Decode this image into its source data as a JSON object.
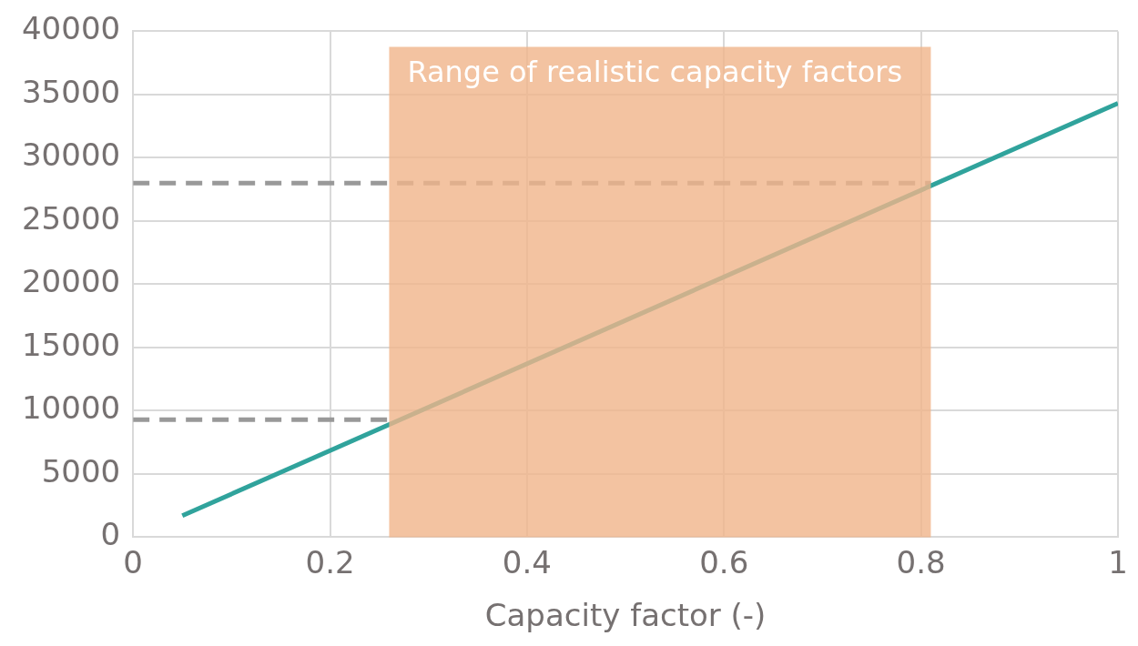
{
  "chart_data": {
    "type": "line",
    "xlabel": "Capacity factor (-)",
    "xlim": [
      0,
      1
    ],
    "xticks": [
      0,
      0.2,
      0.4,
      0.6,
      0.8,
      1
    ],
    "ylim": [
      0,
      40000
    ],
    "yticks": [
      0,
      5000,
      10000,
      15000,
      20000,
      25000,
      30000,
      35000,
      40000
    ],
    "grid": true,
    "legend": false,
    "marker": "none",
    "series": [
      {
        "x": [
          0.05,
          1
        ],
        "values": [
          1700,
          34300
        ],
        "color": "#30a39c",
        "line_style": "solid"
      },
      {
        "x": [
          0,
          0.81
        ],
        "values": [
          28000,
          28000
        ],
        "color": "#999999",
        "line_style": "dashed"
      },
      {
        "x": [
          0,
          0.26
        ],
        "values": [
          9300,
          9300
        ],
        "color": "#999999",
        "line_style": "dashed"
      }
    ],
    "bands": [
      {
        "axis": "x",
        "from": 0.26,
        "to": 0.81,
        "label": "Range of realistic capacity factors",
        "color": "#f0b48a"
      }
    ]
  }
}
